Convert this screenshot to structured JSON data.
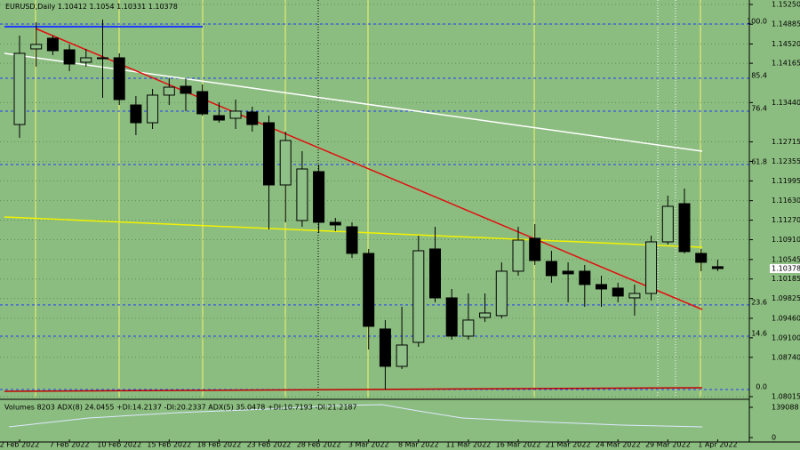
{
  "chart_data": {
    "type": "candlestick",
    "title": "EURUSD,Daily",
    "categories": [
      "2 Feb 2022",
      null,
      null,
      "7 Feb 2022",
      null,
      null,
      "10 Feb 2022",
      null,
      null,
      "15 Feb 2022",
      null,
      null,
      "18 Feb 2022",
      null,
      null,
      "23 Feb 2022",
      null,
      null,
      "28 Feb 2022",
      null,
      null,
      "3 Mar 2022",
      null,
      null,
      "8 Mar 2022",
      null,
      null,
      "11 Mar 2022",
      null,
      null,
      "16 Mar 2022",
      null,
      null,
      "21 Mar 2022",
      null,
      null,
      "24 Mar 2022",
      null,
      null,
      "29 Mar 2022",
      null,
      null,
      "1 Apr 2022"
    ],
    "open": [
      1.13035,
      1.1443,
      1.14627,
      1.14413,
      1.14184,
      1.14266,
      1.14266,
      1.13396,
      1.13068,
      1.13577,
      1.13741,
      1.13642,
      1.13199,
      1.1315,
      1.13265,
      1.13068,
      1.1192,
      1.11264,
      1.12166,
      1.11231,
      1.11149,
      1.10657,
      1.09263,
      1.08574,
      1.09017,
      1.10739,
      1.09837,
      1.09131,
      1.09476,
      1.09509,
      1.10329,
      1.10936,
      1.10509,
      1.10329,
      1.10329,
      1.10083,
      1.10017,
      1.09837,
      1.09919,
      1.1087,
      1.11575,
      1.10657,
      1.10412
    ],
    "high": [
      1.14676,
      1.14922,
      1.14676,
      1.14512,
      1.1443,
      1.14971,
      1.14348,
      1.1356,
      1.13692,
      1.13888,
      1.13888,
      1.13774,
      1.13446,
      1.13495,
      1.13364,
      1.13199,
      1.12904,
      1.12543,
      1.12297,
      1.11313,
      1.11231,
      1.10739,
      1.09427,
      1.09673,
      1.10985,
      1.11149,
      1.10001,
      1.09919,
      1.09919,
      1.10493,
      1.11149,
      1.11198,
      1.10706,
      1.10493,
      1.10444,
      1.10247,
      1.10116,
      1.10083,
      1.10985,
      1.11723,
      1.11854,
      1.10739,
      1.1054
    ],
    "low": [
      1.12789,
      1.14102,
      1.14315,
      1.1402,
      1.14102,
      1.13528,
      1.13396,
      1.12839,
      1.12953,
      1.13396,
      1.13282,
      1.13199,
      1.13068,
      1.12953,
      1.12904,
      1.111,
      1.11231,
      1.11149,
      1.11034,
      1.11067,
      1.10575,
      1.08885,
      1.08147,
      1.08524,
      1.08934,
      1.09755,
      1.09066,
      1.09066,
      1.09394,
      1.0946,
      1.10247,
      1.10444,
      1.10116,
      1.09755,
      1.09673,
      1.09673,
      1.09755,
      1.09509,
      1.09788,
      1.10821,
      1.10657,
      1.10329,
      1.10331
    ],
    "close": [
      1.14348,
      1.14512,
      1.14397,
      1.14151,
      1.14266,
      1.14249,
      1.13495,
      1.13068,
      1.13577,
      1.13724,
      1.1361,
      1.13232,
      1.13117,
      1.13282,
      1.13035,
      1.1192,
      1.1274,
      1.12215,
      1.11231,
      1.11182,
      1.10657,
      1.09312,
      1.08574,
      1.08967,
      1.10706,
      1.09837,
      1.09131,
      1.09427,
      1.09558,
      1.10329,
      1.10903,
      1.10526,
      1.10247,
      1.1028,
      1.10083,
      1.10001,
      1.0987,
      1.09919,
      1.1087,
      1.11526,
      1.1069,
      1.10493,
      1.10378
    ],
    "ylim": [
      1.08015,
      1.1525
    ],
    "yticks": [
      {
        "value": 1.1525,
        "label": "1.15250"
      },
      1.14885,
      {
        "value": 1.1452,
        "label": "1.14520"
      },
      1.14165,
      {
        "value": 1.1344,
        "label": "1.13440"
      },
      1.12715,
      1.12355,
      1.11995,
      {
        "value": 1.1163,
        "label": "1.11630"
      },
      {
        "value": 1.1127,
        "label": "1.11270"
      },
      {
        "value": 1.1091,
        "label": "1.10910"
      },
      1.10545,
      1.10185,
      1.09825,
      {
        "value": 1.0946,
        "label": "1.09460"
      },
      {
        "value": 1.091,
        "label": "1.09100"
      },
      {
        "value": 1.0874,
        "label": "1.08740"
      },
      1.08015
    ],
    "levels": [
      {
        "label": "100.0",
        "value": 1.14889
      },
      {
        "label": "85.4",
        "value": 1.13888
      },
      {
        "label": "76.4",
        "value": 1.13282
      },
      {
        "label": "61.8",
        "value": 1.12297
      },
      {
        "label": "23.6",
        "value": 1.09706
      },
      {
        "label": "14.6",
        "value": 1.09131
      },
      {
        "label": "0.0",
        "value": 1.08147
      }
    ],
    "level_color": "#1e3cff",
    "bull_color": "#8fc088",
    "bear_color": "#000000",
    "volume_panel": {
      "title": "Volumes 8203 ADX(8) 24.0455 +DI:14.2137 -DI:20.2337 ADX(5) 35.0478 +DI:10.7193 -DI:21.2187",
      "ylim": [
        0,
        139088
      ],
      "yticks": [
        139088,
        0
      ]
    }
  }
}
